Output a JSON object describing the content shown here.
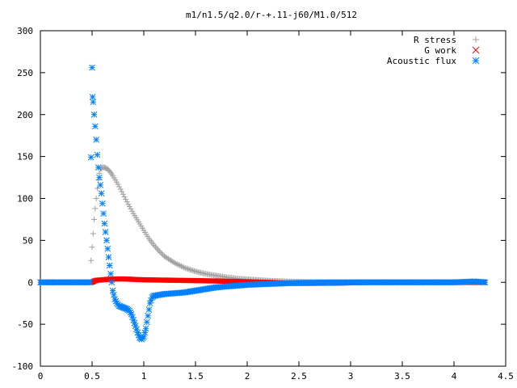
{
  "chart_data": {
    "type": "scatter",
    "title": "m1/n1.5/q2.0/r-+.11-j60/M1.0/512",
    "xlabel": "",
    "ylabel": "",
    "xlim": [
      0,
      4.5
    ],
    "ylim": [
      -100,
      300
    ],
    "x_ticks": [
      "0",
      "0.5",
      "1",
      "1.5",
      "2",
      "2.5",
      "3",
      "3.5",
      "4",
      "4.5"
    ],
    "x_tick_values": [
      0,
      0.5,
      1,
      1.5,
      2,
      2.5,
      3,
      3.5,
      4,
      4.5
    ],
    "y_ticks": [
      "-100",
      "-50",
      "0",
      "50",
      "100",
      "150",
      "200",
      "250",
      "300"
    ],
    "y_tick_values": [
      -100,
      -50,
      0,
      50,
      100,
      150,
      200,
      250,
      300
    ],
    "grid": false,
    "legend_position": "top-right",
    "series": [
      {
        "name": "R stress",
        "marker": "plus",
        "color": "#a0a0a0",
        "points": [
          [
            0.0,
            0
          ],
          [
            0.2,
            0
          ],
          [
            0.4,
            0
          ],
          [
            0.48,
            0
          ],
          [
            0.49,
            26
          ],
          [
            0.5,
            42
          ],
          [
            0.51,
            58
          ],
          [
            0.52,
            75
          ],
          [
            0.53,
            88
          ],
          [
            0.54,
            100
          ],
          [
            0.55,
            112
          ],
          [
            0.56,
            122
          ],
          [
            0.57,
            130
          ],
          [
            0.58,
            135
          ],
          [
            0.6,
            137
          ],
          [
            0.62,
            137
          ],
          [
            0.65,
            135
          ],
          [
            0.68,
            131
          ],
          [
            0.7,
            127
          ],
          [
            0.75,
            117
          ],
          [
            0.8,
            105
          ],
          [
            0.85,
            93
          ],
          [
            0.9,
            82
          ],
          [
            0.95,
            72
          ],
          [
            1.0,
            62
          ],
          [
            1.05,
            52
          ],
          [
            1.1,
            44
          ],
          [
            1.15,
            37
          ],
          [
            1.2,
            31
          ],
          [
            1.3,
            23
          ],
          [
            1.4,
            17
          ],
          [
            1.5,
            13
          ],
          [
            1.6,
            10
          ],
          [
            1.7,
            8
          ],
          [
            1.8,
            6
          ],
          [
            1.9,
            4.5
          ],
          [
            2.0,
            3.5
          ],
          [
            2.2,
            2
          ],
          [
            2.4,
            1
          ],
          [
            2.6,
            0.5
          ],
          [
            2.8,
            0.3
          ],
          [
            3.0,
            0.2
          ],
          [
            3.5,
            0.1
          ],
          [
            4.0,
            0
          ],
          [
            4.3,
            0
          ]
        ]
      },
      {
        "name": "G work",
        "marker": "cross",
        "color": "#ff0000",
        "points": [
          [
            0.0,
            0
          ],
          [
            0.3,
            0
          ],
          [
            0.5,
            0
          ],
          [
            0.52,
            1.5
          ],
          [
            0.55,
            2.5
          ],
          [
            0.6,
            3
          ],
          [
            0.65,
            3.5
          ],
          [
            0.7,
            3.8
          ],
          [
            0.75,
            4
          ],
          [
            0.8,
            4
          ],
          [
            0.85,
            3.8
          ],
          [
            0.9,
            3.5
          ],
          [
            0.95,
            3.2
          ],
          [
            1.0,
            3
          ],
          [
            1.1,
            2.8
          ],
          [
            1.2,
            2.6
          ],
          [
            1.3,
            2.4
          ],
          [
            1.4,
            2.2
          ],
          [
            1.5,
            2
          ],
          [
            1.6,
            1.8
          ],
          [
            1.7,
            1.6
          ],
          [
            1.8,
            1.3
          ],
          [
            1.9,
            1
          ],
          [
            2.0,
            0.6
          ],
          [
            2.1,
            0.3
          ],
          [
            2.2,
            0
          ],
          [
            2.3,
            -0.6
          ],
          [
            2.4,
            -1
          ],
          [
            2.5,
            -1.2
          ],
          [
            2.6,
            -1.2
          ],
          [
            2.7,
            -1.1
          ],
          [
            2.8,
            -1
          ],
          [
            2.9,
            -0.9
          ],
          [
            3.0,
            -0.5
          ],
          [
            3.2,
            0
          ],
          [
            3.5,
            0
          ],
          [
            4.0,
            0
          ],
          [
            4.3,
            0
          ]
        ]
      },
      {
        "name": "Acoustic flux",
        "marker": "star",
        "color": "#0080ff",
        "points": [
          [
            0.0,
            0
          ],
          [
            0.1,
            0
          ],
          [
            0.2,
            0
          ],
          [
            0.3,
            0
          ],
          [
            0.4,
            0
          ],
          [
            0.48,
            0
          ],
          [
            0.49,
            149
          ],
          [
            0.5,
            256
          ],
          [
            0.505,
            221
          ],
          [
            0.51,
            215
          ],
          [
            0.52,
            200
          ],
          [
            0.53,
            186
          ],
          [
            0.54,
            170
          ],
          [
            0.55,
            152
          ],
          [
            0.56,
            137
          ],
          [
            0.57,
            125
          ],
          [
            0.58,
            116
          ],
          [
            0.59,
            106
          ],
          [
            0.6,
            94
          ],
          [
            0.61,
            82
          ],
          [
            0.62,
            70
          ],
          [
            0.63,
            60
          ],
          [
            0.64,
            50
          ],
          [
            0.65,
            40
          ],
          [
            0.66,
            30
          ],
          [
            0.67,
            20
          ],
          [
            0.68,
            10
          ],
          [
            0.69,
            0
          ],
          [
            0.7,
            -10
          ],
          [
            0.72,
            -20
          ],
          [
            0.74,
            -25
          ],
          [
            0.76,
            -28
          ],
          [
            0.78,
            -29
          ],
          [
            0.8,
            -30
          ],
          [
            0.82,
            -31
          ],
          [
            0.84,
            -32
          ],
          [
            0.86,
            -34
          ],
          [
            0.88,
            -38
          ],
          [
            0.9,
            -45
          ],
          [
            0.92,
            -52
          ],
          [
            0.94,
            -60
          ],
          [
            0.96,
            -66
          ],
          [
            0.98,
            -68
          ],
          [
            1.0,
            -65
          ],
          [
            1.02,
            -55
          ],
          [
            1.04,
            -40
          ],
          [
            1.06,
            -25
          ],
          [
            1.08,
            -18
          ],
          [
            1.1,
            -16
          ],
          [
            1.15,
            -15
          ],
          [
            1.2,
            -14
          ],
          [
            1.3,
            -13
          ],
          [
            1.4,
            -12
          ],
          [
            1.5,
            -10
          ],
          [
            1.6,
            -8
          ],
          [
            1.7,
            -6
          ],
          [
            1.8,
            -5
          ],
          [
            1.9,
            -4
          ],
          [
            2.0,
            -3
          ],
          [
            2.2,
            -2
          ],
          [
            2.4,
            -1
          ],
          [
            2.6,
            -0.5
          ],
          [
            3.0,
            0
          ],
          [
            3.5,
            0
          ],
          [
            4.0,
            0
          ],
          [
            4.2,
            1
          ],
          [
            4.3,
            0
          ]
        ]
      }
    ]
  }
}
